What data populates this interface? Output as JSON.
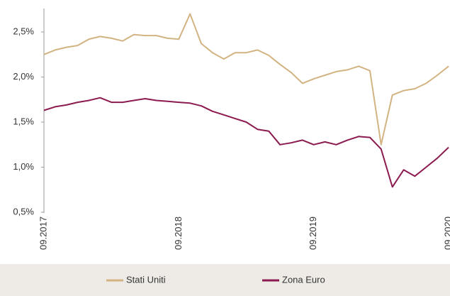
{
  "chart_data": {
    "type": "line",
    "x": [
      "09.2017",
      null,
      null,
      null,
      null,
      null,
      null,
      null,
      null,
      null,
      null,
      null,
      "09.2018",
      null,
      null,
      null,
      null,
      null,
      null,
      null,
      null,
      null,
      null,
      null,
      "09.2019",
      null,
      null,
      null,
      null,
      null,
      null,
      null,
      null,
      null,
      null,
      null,
      "09.2020"
    ],
    "series": [
      {
        "name": "Stati Uniti",
        "color": "#d2b382",
        "values": [
          2.25,
          2.3,
          2.33,
          2.35,
          2.42,
          2.45,
          2.43,
          2.4,
          2.47,
          2.46,
          2.46,
          2.43,
          2.42,
          2.7,
          2.37,
          2.27,
          2.2,
          2.27,
          2.27,
          2.3,
          2.24,
          2.14,
          2.05,
          1.93,
          1.98,
          2.02,
          2.06,
          2.08,
          2.12,
          2.07,
          1.25,
          1.8,
          1.85,
          1.87,
          1.93,
          2.02,
          2.12
        ]
      },
      {
        "name": "Zona Euro",
        "color": "#8b1a4f",
        "values": [
          1.63,
          1.67,
          1.69,
          1.72,
          1.74,
          1.77,
          1.72,
          1.72,
          1.74,
          1.76,
          1.74,
          1.73,
          1.72,
          1.71,
          1.68,
          1.62,
          1.58,
          1.54,
          1.5,
          1.42,
          1.4,
          1.25,
          1.27,
          1.3,
          1.25,
          1.28,
          1.25,
          1.3,
          1.34,
          1.33,
          1.2,
          0.78,
          0.97,
          0.9,
          1.0,
          1.1,
          1.22
        ]
      }
    ],
    "ylim": [
      0.5,
      2.76
    ],
    "yticks": [
      {
        "value": 0.5,
        "label": "0,5%"
      },
      {
        "value": 1.0,
        "label": "1,0%"
      },
      {
        "value": 1.5,
        "label": "1,5%"
      },
      {
        "value": 2.0,
        "label": "2,0%"
      },
      {
        "value": 2.5,
        "label": "2,5%"
      }
    ],
    "legend": "bottom"
  }
}
